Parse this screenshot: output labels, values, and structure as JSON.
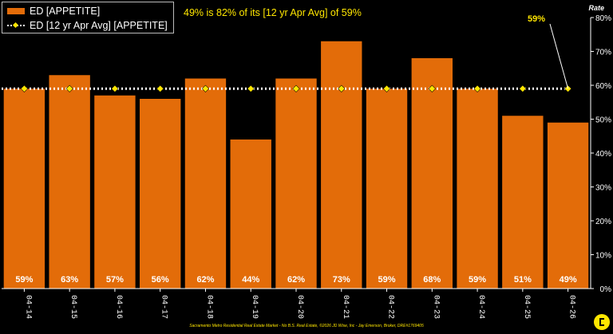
{
  "headline": "49% is 82% of its [12 yr Apr Avg] of 59%",
  "legend": {
    "bar_label": "ED [APPETITE]",
    "line_label": "ED [12 yr Apr Avg] [APPETITE]"
  },
  "footer": "Sacramento Metro Residential Real Estate Market - No B.S. Real Estate, ©2026 JD Wise, Inc - Jay Emerson, Broker, DRE#1769405",
  "colors": {
    "bar": "#E36C09",
    "marker": "#FFE600",
    "avg_line": "#FFFFFF",
    "background": "#000000"
  },
  "chart_data": {
    "type": "bar",
    "categories": [
      "04-14",
      "04-15",
      "04-16",
      "04-17",
      "04-18",
      "04-19",
      "04-20",
      "04-21",
      "04-22",
      "04-23",
      "04-24",
      "04-25",
      "04-26"
    ],
    "series": [
      {
        "name": "ED [APPETITE]",
        "type": "bar",
        "values": [
          59,
          63,
          57,
          56,
          62,
          44,
          62,
          73,
          59,
          68,
          59,
          51,
          49
        ],
        "labels": [
          "59%",
          "63%",
          "57%",
          "56%",
          "62%",
          "44%",
          "62%",
          "73%",
          "59%",
          "68%",
          "59%",
          "51%",
          "49%"
        ]
      },
      {
        "name": "ED [12 yr Apr Avg] [APPETITE]",
        "type": "line",
        "values": [
          59,
          59,
          59,
          59,
          59,
          59,
          59,
          59,
          59,
          59,
          59,
          59,
          59
        ]
      }
    ],
    "ylabel": "Rate",
    "ylim": [
      0,
      80
    ],
    "yticks": [
      "0%",
      "10%",
      "20%",
      "30%",
      "40%",
      "50%",
      "60%",
      "70%",
      "80%"
    ],
    "annotation": "59%",
    "axis_side": "right",
    "grid": false
  }
}
